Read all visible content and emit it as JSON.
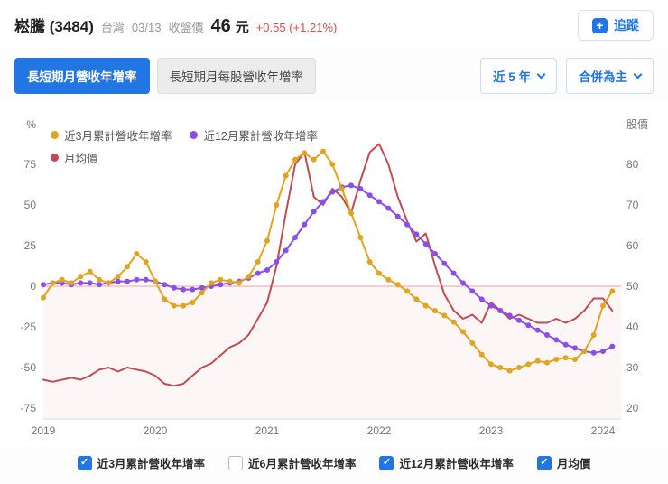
{
  "header": {
    "title": "崧騰 (3484)",
    "market": "台灣",
    "date": "03/13",
    "price_label": "收盤價",
    "price": "46",
    "unit": "元",
    "change": "+0.55 (+1.21%)",
    "follow_label": "追蹤"
  },
  "toolbar": {
    "tabs": [
      {
        "label": "長短期月營收年增率",
        "active": true
      },
      {
        "label": "長短期月每股營收年增率",
        "active": false
      }
    ],
    "range_label": "近 5 年",
    "mode_label": "合併為主"
  },
  "colors": {
    "accent_blue": "#2276e3",
    "change_red": "#e5484d",
    "series_yellow": "#e0a41f",
    "series_purple": "#8a4fe8",
    "series_red": "#c24b52",
    "zero_line": "#f0a0a6",
    "negative_fill": "#d94f5c"
  },
  "chart_data": {
    "type": "line",
    "left_axis_title": "%",
    "right_axis_title": "股價",
    "percent_ticks": [
      75,
      50,
      25,
      0,
      -25,
      -50,
      -75
    ],
    "price_ticks": [
      80,
      70,
      60,
      50,
      40,
      30,
      20
    ],
    "x_ticks": [
      "2019",
      "2020",
      "2021",
      "2022",
      "2023",
      "2024"
    ],
    "percent_range": [
      -82,
      92
    ],
    "price_range": [
      17,
      87
    ],
    "months": [
      "2019-01",
      "2019-02",
      "2019-03",
      "2019-04",
      "2019-05",
      "2019-06",
      "2019-07",
      "2019-08",
      "2019-09",
      "2019-10",
      "2019-11",
      "2019-12",
      "2020-01",
      "2020-02",
      "2020-03",
      "2020-04",
      "2020-05",
      "2020-06",
      "2020-07",
      "2020-08",
      "2020-09",
      "2020-10",
      "2020-11",
      "2020-12",
      "2021-01",
      "2021-02",
      "2021-03",
      "2021-04",
      "2021-05",
      "2021-06",
      "2021-07",
      "2021-08",
      "2021-09",
      "2021-10",
      "2021-11",
      "2021-12",
      "2022-01",
      "2022-02",
      "2022-03",
      "2022-04",
      "2022-05",
      "2022-06",
      "2022-07",
      "2022-08",
      "2022-09",
      "2022-10",
      "2022-11",
      "2022-12",
      "2023-01",
      "2023-02",
      "2023-03",
      "2023-04",
      "2023-05",
      "2023-06",
      "2023-07",
      "2023-08",
      "2023-09",
      "2023-10",
      "2023-11",
      "2023-12",
      "2024-01",
      "2024-02"
    ],
    "series": [
      {
        "id": "yoy-3m",
        "name": "近3月累計營收年增率",
        "axis": "percent",
        "color": "#e0a41f",
        "dots": true,
        "values": [
          -7,
          2,
          4,
          2,
          6,
          9,
          4,
          2,
          6,
          12,
          20,
          15,
          3,
          -8,
          -12,
          -12,
          -10,
          -4,
          2,
          4,
          3,
          2,
          6,
          15,
          28,
          50,
          68,
          78,
          82,
          78,
          83,
          75,
          60,
          45,
          30,
          15,
          8,
          4,
          1,
          -3,
          -8,
          -12,
          -15,
          -18,
          -22,
          -28,
          -35,
          -42,
          -48,
          -50,
          -52,
          -50,
          -48,
          -46,
          -47,
          -45,
          -44,
          -45,
          -40,
          -30,
          -12,
          -3
        ]
      },
      {
        "id": "yoy-12m",
        "name": "近12月累計營收年增率",
        "axis": "percent",
        "color": "#8a4fe8",
        "dots": true,
        "values": [
          1,
          2,
          2,
          1,
          2,
          2,
          1,
          2,
          3,
          3,
          4,
          4,
          3,
          1,
          -1,
          -2,
          -2,
          -1,
          0,
          1,
          2,
          3,
          5,
          8,
          10,
          15,
          22,
          30,
          38,
          46,
          52,
          58,
          61,
          62,
          60,
          56,
          52,
          48,
          43,
          38,
          32,
          26,
          20,
          14,
          8,
          2,
          -3,
          -8,
          -12,
          -15,
          -18,
          -21,
          -24,
          -27,
          -30,
          -33,
          -36,
          -38,
          -40,
          -41,
          -40,
          -37
        ]
      },
      {
        "id": "avg-price",
        "name": "月均價",
        "axis": "price",
        "color": "#c24b52",
        "dots": false,
        "values": [
          27,
          26.5,
          27,
          27.5,
          27,
          28,
          29.5,
          30,
          29,
          30,
          29.5,
          29,
          28,
          26,
          25.5,
          26,
          28,
          30,
          31,
          33,
          35,
          36,
          38,
          42,
          46,
          55,
          68,
          80,
          83,
          72,
          70,
          74,
          72,
          68,
          76,
          83,
          85,
          80,
          72,
          66,
          61,
          63,
          55,
          48,
          44,
          42,
          43,
          41,
          46,
          44,
          42,
          43,
          42,
          41,
          41,
          42,
          41,
          42,
          44,
          47,
          47,
          44
        ]
      }
    ]
  },
  "footer": {
    "checkboxes": [
      {
        "label": "近3月累計營收年增率",
        "checked": true
      },
      {
        "label": "近6月累計營收年增率",
        "checked": false
      },
      {
        "label": "近12月累計營收年增率",
        "checked": true
      },
      {
        "label": "月均價",
        "checked": true
      }
    ]
  }
}
